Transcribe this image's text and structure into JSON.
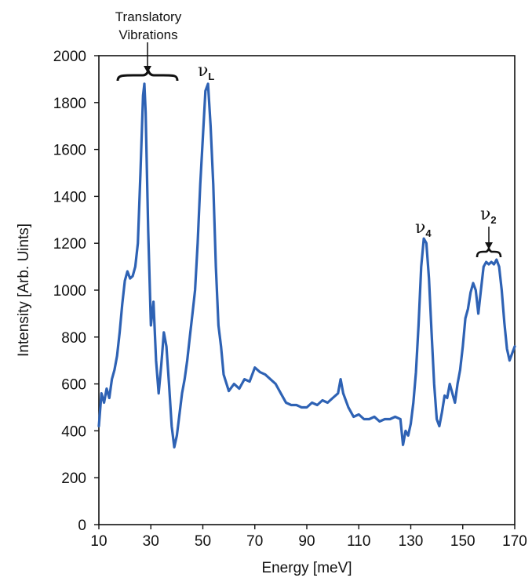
{
  "chart_data": {
    "type": "line",
    "xlabel": "Energy [meV]",
    "ylabel": "Intensity [Arb. Uints]",
    "xlim": [
      10,
      170
    ],
    "ylim": [
      0,
      2000
    ],
    "x_ticks": [
      10,
      30,
      50,
      70,
      90,
      110,
      130,
      150,
      170
    ],
    "y_ticks": [
      0,
      200,
      400,
      600,
      800,
      1000,
      1200,
      1400,
      1600,
      1800,
      2000
    ],
    "line_color": "#2e62b4",
    "grid": false,
    "series": [
      {
        "x": [
          10,
          11,
          12,
          13,
          14,
          15,
          16,
          17,
          18,
          19,
          20,
          21,
          22,
          23,
          24,
          25,
          26,
          27,
          27.5,
          28,
          29,
          30,
          31,
          32,
          33,
          34,
          35,
          36,
          37,
          38,
          39,
          40,
          41,
          42,
          43,
          44,
          45,
          46,
          47,
          48,
          49,
          50,
          51,
          52,
          53,
          54,
          55,
          56,
          57,
          58,
          60,
          62,
          64,
          66,
          68,
          70,
          72,
          74,
          76,
          78,
          80,
          82,
          84,
          86,
          88,
          90,
          92,
          94,
          96,
          98,
          100,
          102,
          103,
          104,
          106,
          108,
          110,
          112,
          114,
          116,
          118,
          120,
          122,
          124,
          126,
          127,
          128,
          129,
          130,
          131,
          132,
          133,
          134,
          135,
          136,
          137,
          138,
          139,
          140,
          141,
          142,
          143,
          144,
          145,
          146,
          147,
          148,
          149,
          150,
          151,
          152,
          153,
          154,
          155,
          156,
          157,
          158,
          159,
          160,
          161,
          162,
          163,
          164,
          165,
          166,
          167,
          168,
          169,
          170
        ],
        "y": [
          420,
          560,
          520,
          580,
          540,
          620,
          660,
          720,
          820,
          940,
          1040,
          1080,
          1050,
          1060,
          1100,
          1200,
          1500,
          1830,
          1880,
          1760,
          1250,
          850,
          950,
          700,
          560,
          680,
          820,
          760,
          600,
          420,
          330,
          380,
          470,
          560,
          620,
          700,
          800,
          900,
          1000,
          1200,
          1450,
          1650,
          1850,
          1880,
          1700,
          1450,
          1100,
          850,
          760,
          640,
          570,
          600,
          580,
          620,
          610,
          670,
          650,
          640,
          620,
          600,
          560,
          520,
          510,
          510,
          500,
          500,
          520,
          510,
          530,
          520,
          540,
          560,
          620,
          560,
          500,
          460,
          470,
          450,
          450,
          460,
          440,
          450,
          450,
          460,
          450,
          340,
          400,
          380,
          430,
          520,
          650,
          850,
          1100,
          1220,
          1200,
          1050,
          820,
          600,
          450,
          420,
          480,
          550,
          540,
          600,
          560,
          520,
          600,
          660,
          760,
          880,
          920,
          990,
          1030,
          1000,
          900,
          1000,
          1100,
          1120,
          1110,
          1120,
          1110,
          1130,
          1100,
          1000,
          860,
          750,
          700,
          730,
          760
        ]
      }
    ],
    "annotations": {
      "translatory_line1": "Translatory",
      "translatory_line2": "Vibrations",
      "nu_L_symbol": "ν",
      "nu_L_sub": "L",
      "nu_4_symbol": "ν",
      "nu_4_sub": "4",
      "nu_2_symbol": "ν",
      "nu_2_sub": "2"
    }
  }
}
